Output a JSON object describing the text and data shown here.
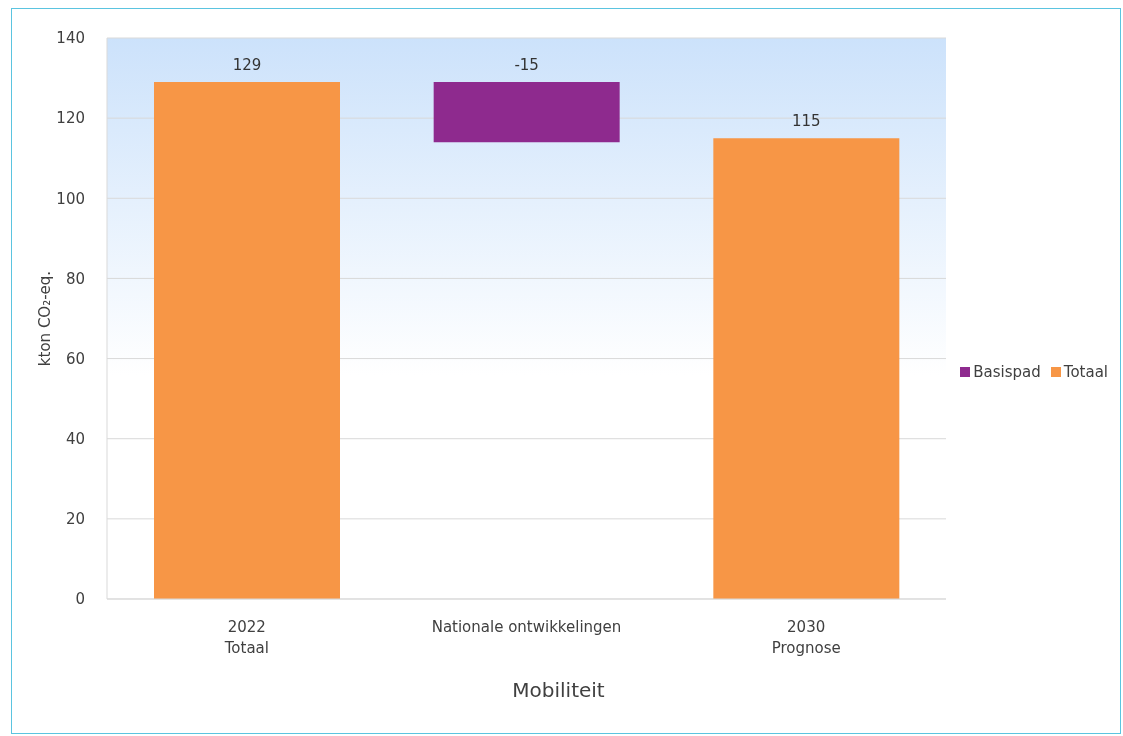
{
  "chart_data": {
    "type": "bar",
    "xlabel": "Mobiliteit",
    "ylabel": "kton CO₂-eq.",
    "categories": [
      "2022\nTotaal",
      "Nationale ontwikkelingen",
      "2030\nPrognose"
    ],
    "series": [
      {
        "name": "Basispad",
        "color": "#8e2a8e",
        "values": [
          null,
          -15,
          null
        ],
        "base": [
          null,
          129,
          null
        ]
      },
      {
        "name": "Totaal",
        "color": "#f79646",
        "values": [
          129,
          null,
          115
        ]
      }
    ],
    "ylim": [
      0,
      140
    ],
    "yticks": [
      0,
      20,
      40,
      60,
      80,
      100,
      120,
      140
    ],
    "grid": "y",
    "legend": "right",
    "data_labels": true
  }
}
